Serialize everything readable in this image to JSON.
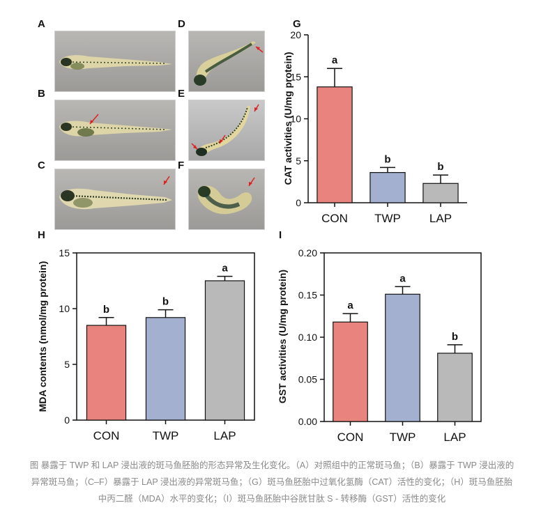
{
  "panels": {
    "A": "A",
    "B": "B",
    "C": "C",
    "D": "D",
    "E": "E",
    "F": "F",
    "G": "G",
    "H": "H",
    "I": "I"
  },
  "colors": {
    "CON": "#e8837d",
    "TWP": "#a3b0d0",
    "LAP": "#b9b9b9",
    "arrow": "#e02020"
  },
  "chart_data": [
    {
      "id": "G",
      "type": "bar",
      "categories": [
        "CON",
        "TWP",
        "LAP"
      ],
      "values": [
        13.8,
        3.6,
        2.3
      ],
      "errors": [
        2.2,
        0.6,
        1.0
      ],
      "significance": [
        "a",
        "b",
        "b"
      ],
      "ylabel": "CAT activities (U/mg protein)",
      "ylim": [
        0,
        20
      ],
      "yticks": [
        0,
        5,
        10,
        15,
        20
      ],
      "ytick_labels": [
        "0",
        "5",
        "10",
        "15",
        "20"
      ],
      "frame": "open"
    },
    {
      "id": "H",
      "type": "bar",
      "categories": [
        "CON",
        "TWP",
        "LAP"
      ],
      "values": [
        8.5,
        9.2,
        12.5
      ],
      "errors": [
        0.7,
        0.7,
        0.4
      ],
      "significance": [
        "b",
        "b",
        "a"
      ],
      "ylabel": "MDA contents (nmol/mg protein)",
      "ylim": [
        0,
        15
      ],
      "yticks": [
        0,
        5,
        10,
        15
      ],
      "ytick_labels": [
        "0",
        "5",
        "10",
        "15"
      ],
      "frame": "box"
    },
    {
      "id": "I",
      "type": "bar",
      "categories": [
        "CON",
        "TWP",
        "LAP"
      ],
      "values": [
        0.118,
        0.151,
        0.081
      ],
      "errors": [
        0.01,
        0.009,
        0.01
      ],
      "significance": [
        "a",
        "a",
        "b"
      ],
      "ylabel": "GST activities (U/mg protein)",
      "ylim": [
        0,
        0.2
      ],
      "yticks": [
        0,
        0.05,
        0.1,
        0.15,
        0.2
      ],
      "ytick_labels": [
        "0.00",
        "0.05",
        "0.10",
        "0.15",
        "0.20"
      ],
      "frame": "box"
    }
  ],
  "caption": "图 暴露于 TWP 和 LAP 浸出液的斑马鱼胚胎的形态异常及生化变化。（A）对照组中的正常斑马鱼；（B）暴露于 TWP 浸出液的异常斑马鱼；（C–F）暴露于 LAP 浸出液的异常斑马鱼；（G）斑马鱼胚胎中过氧化氢酶（CAT）活性的变化；（H）斑马鱼胚胎中丙二醛（MDA）水平的变化；（I）斑马鱼胚胎中谷胱甘肽 S - 转移酶（GST）活性的变化"
}
